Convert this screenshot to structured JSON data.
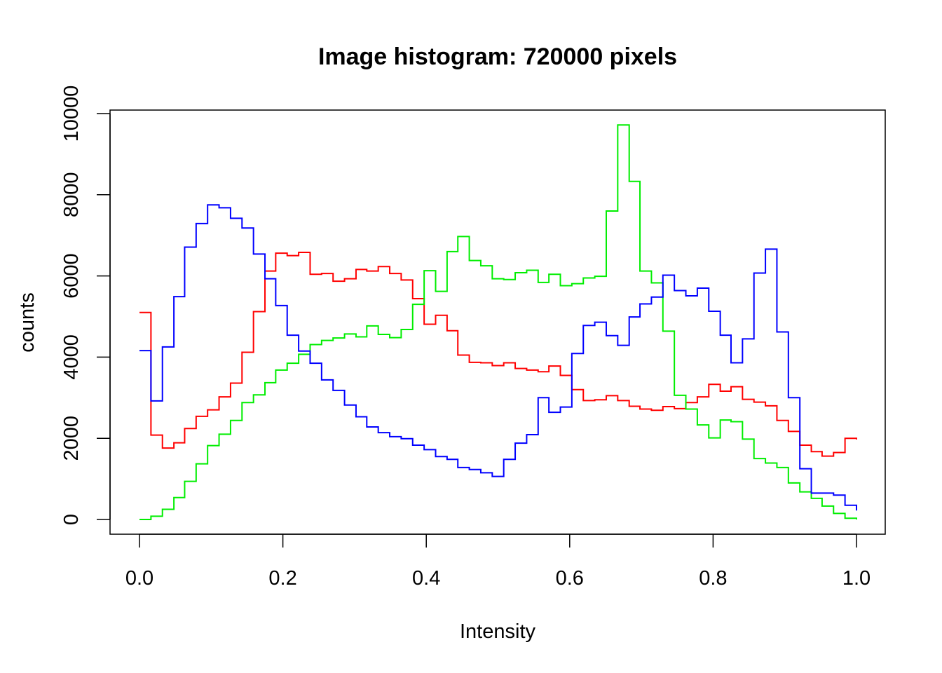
{
  "chart_data": {
    "type": "line",
    "title": "Image histogram: 720000 pixels",
    "xlabel": "Intensity",
    "ylabel": "counts",
    "xlim": [
      0,
      1
    ],
    "ylim": [
      0,
      10000
    ],
    "grid": false,
    "legend": "none",
    "x_ticks": [
      "0.0",
      "0.2",
      "0.4",
      "0.6",
      "0.8",
      "1.0"
    ],
    "y_ticks": [
      "0",
      "2000",
      "4000",
      "6000",
      "8000",
      "10000"
    ],
    "x": [
      0.0,
      0.016,
      0.032,
      0.048,
      0.063,
      0.079,
      0.095,
      0.111,
      0.127,
      0.143,
      0.159,
      0.175,
      0.19,
      0.206,
      0.222,
      0.238,
      0.254,
      0.27,
      0.286,
      0.302,
      0.317,
      0.333,
      0.349,
      0.365,
      0.381,
      0.397,
      0.413,
      0.429,
      0.444,
      0.46,
      0.476,
      0.492,
      0.508,
      0.524,
      0.54,
      0.556,
      0.571,
      0.587,
      0.603,
      0.619,
      0.635,
      0.651,
      0.667,
      0.683,
      0.698,
      0.714,
      0.73,
      0.746,
      0.762,
      0.778,
      0.794,
      0.81,
      0.825,
      0.841,
      0.857,
      0.873,
      0.889,
      0.905,
      0.921,
      0.937,
      0.952,
      0.968,
      0.984,
      1.0
    ],
    "series": [
      {
        "color": "#ff0000",
        "values": [
          5100,
          2080,
          1760,
          1890,
          2240,
          2540,
          2700,
          3020,
          3360,
          4120,
          5120,
          6120,
          6560,
          6500,
          6580,
          6040,
          6060,
          5870,
          5930,
          6160,
          6120,
          6230,
          6060,
          5900,
          5440,
          4810,
          5030,
          4650,
          4050,
          3870,
          3860,
          3790,
          3860,
          3720,
          3680,
          3640,
          3780,
          3550,
          3200,
          2930,
          2950,
          3050,
          2930,
          2790,
          2720,
          2690,
          2780,
          2730,
          2880,
          3020,
          3330,
          3160,
          3270,
          2960,
          2890,
          2800,
          2440,
          2170,
          1830,
          1670,
          1560,
          1650,
          2000,
          1970
        ]
      },
      {
        "color": "#00ee00",
        "values": [
          0,
          80,
          250,
          540,
          940,
          1370,
          1820,
          2100,
          2440,
          2880,
          3070,
          3370,
          3680,
          3850,
          4070,
          4310,
          4410,
          4470,
          4570,
          4500,
          4770,
          4560,
          4480,
          4680,
          5300,
          6130,
          5620,
          6600,
          6970,
          6380,
          6250,
          5930,
          5910,
          6080,
          6140,
          5840,
          6040,
          5760,
          5810,
          5950,
          5990,
          7600,
          9720,
          8330,
          6120,
          5830,
          4640,
          3060,
          2720,
          2330,
          2010,
          2450,
          2410,
          1980,
          1500,
          1390,
          1280,
          900,
          680,
          520,
          330,
          150,
          30,
          0
        ]
      },
      {
        "color": "#0000ff",
        "values": [
          4160,
          2920,
          4250,
          5490,
          6710,
          7290,
          7750,
          7680,
          7420,
          7180,
          6540,
          5930,
          5270,
          4540,
          4150,
          3850,
          3440,
          3180,
          2820,
          2530,
          2280,
          2140,
          2040,
          1990,
          1830,
          1720,
          1550,
          1480,
          1280,
          1230,
          1150,
          1060,
          1480,
          1880,
          2090,
          3000,
          2640,
          2770,
          4090,
          4780,
          4860,
          4530,
          4290,
          4990,
          5310,
          5480,
          6020,
          5640,
          5510,
          5700,
          5130,
          4540,
          3860,
          4450,
          6070,
          6660,
          4620,
          3000,
          1250,
          650,
          650,
          600,
          350,
          220
        ]
      }
    ]
  }
}
